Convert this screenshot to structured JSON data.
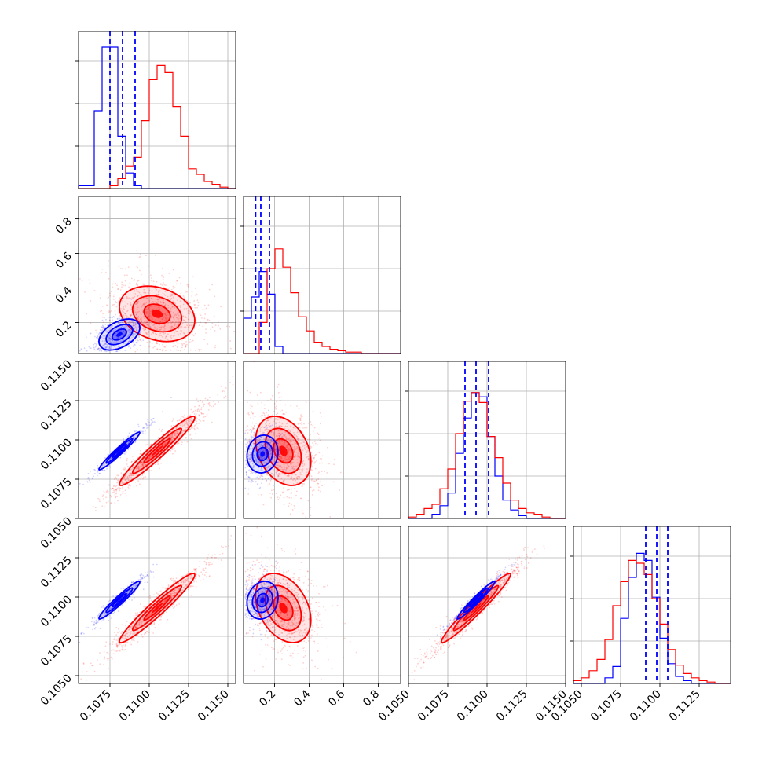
{
  "chart_data": {
    "type": "corner",
    "grid": true,
    "series": [
      {
        "name": "",
        "color": "#0000ff"
      },
      {
        "name": "",
        "color": "#ff0000"
      }
    ],
    "parameters": [
      {
        "range": [
          0.1055,
          0.1155
        ],
        "tick_values": [
          0.1075,
          0.11,
          0.1125,
          0.115
        ],
        "tick_labels": [
          "0.1075",
          "0.1100",
          "0.1125",
          "0.1150"
        ],
        "histograms": {
          "blue": [
            0.02,
            0.02,
            0.55,
            1.0,
            1.0,
            0.37,
            0.11,
            0.02,
            0.0,
            0.0,
            0.0,
            0.0,
            0.0,
            0.0,
            0.0,
            0.0,
            0.0,
            0.0,
            0.0,
            0.0
          ],
          "red": [
            0.0,
            0.0,
            0.0,
            0.0,
            0.02,
            0.07,
            0.16,
            0.22,
            0.48,
            0.77,
            0.87,
            0.82,
            0.58,
            0.37,
            0.14,
            0.1,
            0.05,
            0.03,
            0.01,
            0.0
          ]
        },
        "quantiles_blue": [
          0.1075,
          0.1083,
          0.1091
        ]
      },
      {
        "range": [
          0.02,
          0.93
        ],
        "tick_values": [
          0.2,
          0.4,
          0.6,
          0.8
        ],
        "tick_labels": [
          "0.2",
          "0.4",
          "0.6",
          "0.8"
        ],
        "histograms": {
          "blue": [
            0.25,
            0.4,
            0.58,
            0.42,
            0.05,
            0.0,
            0.0,
            0.0,
            0.0,
            0.0,
            0.0,
            0.0,
            0.0,
            0.0,
            0.0,
            0.0,
            0.0,
            0.0,
            0.0,
            0.0
          ],
          "red": [
            0.0,
            0.0,
            0.22,
            0.6,
            0.74,
            0.61,
            0.43,
            0.26,
            0.16,
            0.08,
            0.05,
            0.03,
            0.02,
            0.01,
            0.01,
            0.0,
            0.0,
            0.0,
            0.0,
            0.0
          ]
        },
        "quantiles_blue": [
          0.09,
          0.12,
          0.17
        ]
      },
      {
        "range": [
          0.105,
          0.115
        ],
        "tick_values": [
          0.105,
          0.1075,
          0.11,
          0.1125,
          0.115
        ],
        "tick_labels": [
          "0.1050",
          "0.1075",
          "0.1100",
          "0.1125",
          "0.1150"
        ],
        "histograms": {
          "blue": [
            0.0,
            0.0,
            0.0,
            0.03,
            0.09,
            0.18,
            0.46,
            0.71,
            0.89,
            0.86,
            0.58,
            0.3,
            0.13,
            0.06,
            0.02,
            0.0,
            0.0,
            0.0,
            0.0,
            0.0
          ],
          "red": [
            0.01,
            0.03,
            0.07,
            0.1,
            0.21,
            0.35,
            0.6,
            0.83,
            0.89,
            0.82,
            0.58,
            0.43,
            0.25,
            0.13,
            0.07,
            0.04,
            0.03,
            0.01,
            0.0,
            0.0
          ]
        },
        "quantiles_blue": [
          0.1086,
          0.1093,
          0.1101
        ]
      },
      {
        "range": [
          0.1045,
          0.1145
        ],
        "tick_values": [
          0.105,
          0.1075,
          0.11,
          0.1125
        ],
        "tick_labels": [
          "0.1050",
          "0.1075",
          "0.1100",
          "0.1125"
        ],
        "histograms": {
          "blue": [
            0.0,
            0.0,
            0.0,
            0.0,
            0.04,
            0.12,
            0.46,
            0.75,
            0.92,
            0.87,
            0.61,
            0.32,
            0.14,
            0.05,
            0.02,
            0.0,
            0.0,
            0.0,
            0.0,
            0.0
          ],
          "red": [
            0.02,
            0.04,
            0.09,
            0.17,
            0.31,
            0.55,
            0.72,
            0.87,
            0.85,
            0.77,
            0.6,
            0.42,
            0.24,
            0.13,
            0.07,
            0.04,
            0.02,
            0.01,
            0.0,
            0.0
          ]
        },
        "quantiles_blue": [
          0.1091,
          0.1098,
          0.1105
        ]
      }
    ],
    "pairs": [
      {
        "row": 1,
        "col": 0,
        "blue": {
          "mean": [
            0.1081,
            0.13
          ],
          "sd": [
            0.00065,
            0.045
          ],
          "rho": 0.45
        },
        "red": {
          "mean": [
            0.1105,
            0.25
          ],
          "sd": [
            0.0012,
            0.08
          ],
          "rho": -0.25
        }
      },
      {
        "row": 2,
        "col": 0,
        "blue": {
          "mean": [
            0.1081,
            0.1093
          ],
          "sd": [
            0.00065,
            0.0006
          ],
          "rho": 0.97
        },
        "red": {
          "mean": [
            0.1105,
            0.1093
          ],
          "sd": [
            0.0012,
            0.0011
          ],
          "rho": 0.96
        }
      },
      {
        "row": 2,
        "col": 1,
        "blue": {
          "mean": [
            0.13,
            0.1091
          ],
          "sd": [
            0.045,
            0.0006
          ],
          "rho": 0.1
        },
        "red": {
          "mean": [
            0.25,
            0.1093
          ],
          "sd": [
            0.08,
            0.0011
          ],
          "rho": -0.3
        }
      },
      {
        "row": 3,
        "col": 0,
        "blue": {
          "mean": [
            0.1081,
            0.1098
          ],
          "sd": [
            0.00065,
            0.0006
          ],
          "rho": 0.96
        },
        "red": {
          "mean": [
            0.1105,
            0.1093
          ],
          "sd": [
            0.0012,
            0.0011
          ],
          "rho": 0.96
        }
      },
      {
        "row": 3,
        "col": 1,
        "blue": {
          "mean": [
            0.13,
            0.1098
          ],
          "sd": [
            0.045,
            0.0006
          ],
          "rho": 0.15
        },
        "red": {
          "mean": [
            0.25,
            0.1093
          ],
          "sd": [
            0.08,
            0.0011
          ],
          "rho": -0.35
        }
      },
      {
        "row": 3,
        "col": 2,
        "blue": {
          "mean": [
            0.1093,
            0.1098
          ],
          "sd": [
            0.0006,
            0.0006
          ],
          "rho": 0.97
        },
        "red": {
          "mean": [
            0.1093,
            0.1093
          ],
          "sd": [
            0.0011,
            0.0011
          ],
          "rho": 0.97
        }
      }
    ]
  }
}
